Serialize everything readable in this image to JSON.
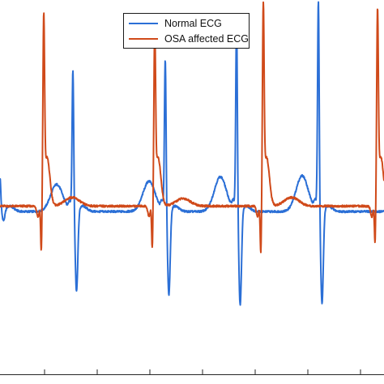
{
  "chart_data": {
    "type": "line",
    "title": "",
    "xlabel": "",
    "ylabel": "",
    "x_range": [
      0,
      4.74
    ],
    "y_range": [
      -1.55,
      1.9
    ],
    "grid": false,
    "legend_placement": "top-center",
    "series": [
      {
        "name": "Normal ECG",
        "color": "#2b6fd6",
        "baseline": -0.05,
        "beats": [
          {
            "x": 0.0,
            "r": 0.3,
            "s": -0.1,
            "t": 0.3
          },
          {
            "x": 0.9,
            "r": 1.3,
            "s": -0.75,
            "t": 0.25
          },
          {
            "x": 2.04,
            "r": 1.4,
            "s": -0.78,
            "t": 0.28
          },
          {
            "x": 2.92,
            "r": 1.75,
            "s": -0.88,
            "t": 0.32
          },
          {
            "x": 3.93,
            "r": 1.95,
            "s": -0.86,
            "t": 0.33
          }
        ]
      },
      {
        "name": "OSA affected ECG",
        "color": "#d04a1a",
        "baseline": 0.0,
        "beats": [
          {
            "x": 0.54,
            "r": 1.55,
            "s": -0.48,
            "t": 0.08
          },
          {
            "x": 1.91,
            "r": 1.45,
            "s": -0.45,
            "t": 0.07
          },
          {
            "x": 3.25,
            "r": 1.65,
            "s": -0.5,
            "t": 0.08
          },
          {
            "x": 4.66,
            "r": 1.6,
            "s": -0.4,
            "t": 0.06
          }
        ]
      }
    ]
  }
}
